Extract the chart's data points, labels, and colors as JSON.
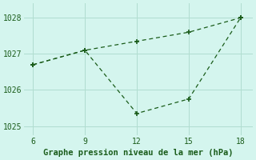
{
  "x": [
    6,
    9,
    12,
    15,
    18
  ],
  "line1": [
    1026.7,
    1027.1,
    1027.35,
    1027.6,
    1028.0
  ],
  "line2": [
    1026.7,
    1027.1,
    1025.35,
    1025.75,
    1028.0
  ],
  "line_color": "#1a5c1a",
  "bg_color": "#d4f5ee",
  "grid_color": "#b0ddd0",
  "xlabel": "Graphe pression niveau de la mer (hPa)",
  "xlim": [
    5.5,
    18.7
  ],
  "ylim": [
    1024.75,
    1028.4
  ],
  "yticks": [
    1025,
    1026,
    1027,
    1028
  ],
  "xticks": [
    6,
    9,
    12,
    15,
    18
  ],
  "xlabel_color": "#1a5c1a",
  "xlabel_fontsize": 7.5,
  "tick_fontsize": 7
}
